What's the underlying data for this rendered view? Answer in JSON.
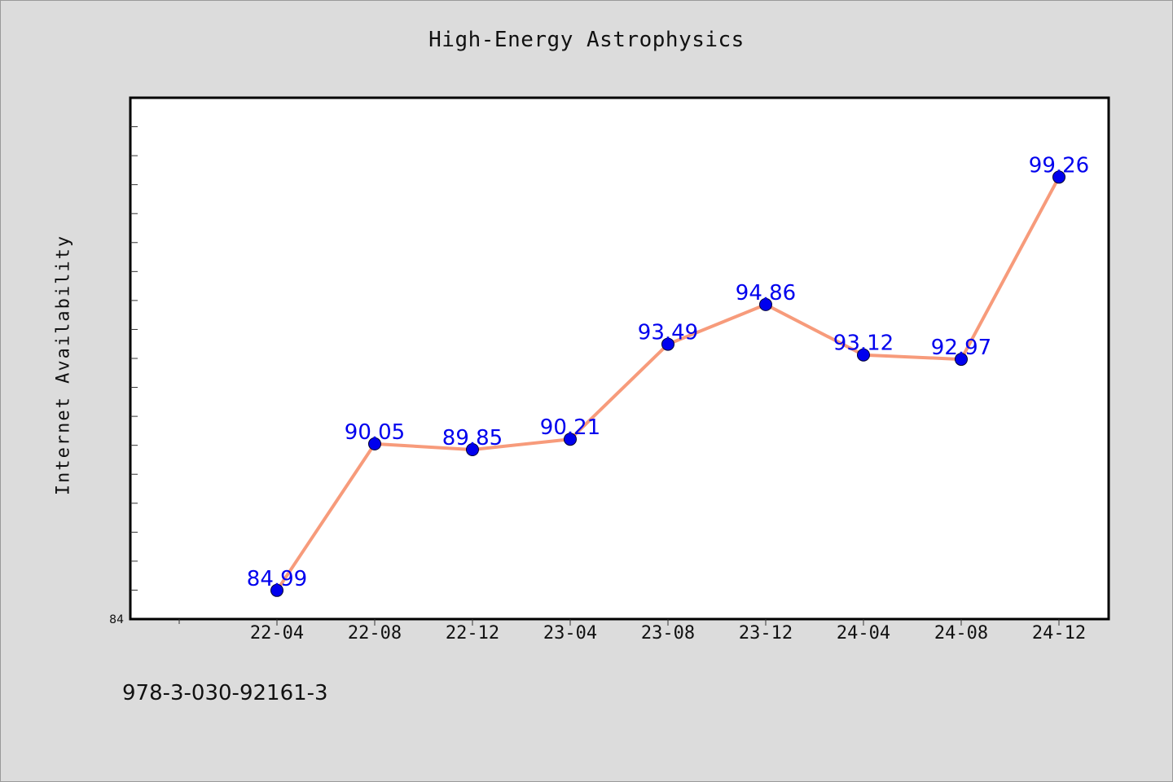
{
  "chart_data": {
    "type": "line",
    "title": "High-Energy Astrophysics",
    "ylabel": "Internet Availability",
    "xlabel": "",
    "x": [
      "22-04",
      "22-08",
      "22-12",
      "23-04",
      "23-08",
      "23-12",
      "24-04",
      "24-08",
      "24-12"
    ],
    "values": [
      84.99,
      90.05,
      89.85,
      90.21,
      93.49,
      94.86,
      93.12,
      92.97,
      99.26
    ],
    "data_labels": [
      "84.99",
      "90.05",
      "89.85",
      "90.21",
      "93.49",
      "94.86",
      "93.12",
      "92.97",
      "99.26"
    ],
    "ylim": [
      84,
      102
    ],
    "y_tick_labels": [
      "84"
    ],
    "y_minor_step": 1,
    "grid": false,
    "legend": "none",
    "colors": {
      "line": "#f79b7b",
      "marker": "#0000ee",
      "data_label": "#0000ee",
      "plot_background": "#ffffff",
      "page_background": "#dcdcdc"
    }
  },
  "footnote": "978-3-030-92161-3"
}
